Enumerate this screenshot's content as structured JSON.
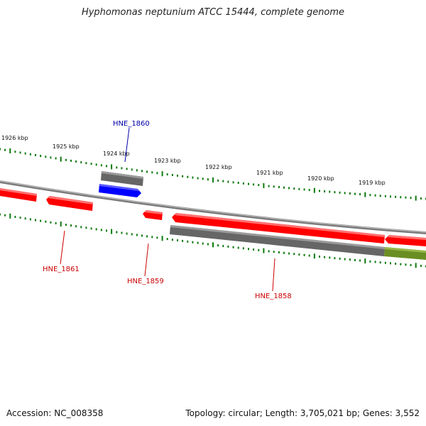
{
  "title": "Hyphomonas neptunium ATCC 15444, complete genome",
  "footer": {
    "accession": "Accession: NC_008358",
    "topology": "Topology: circular; Length: 3,705,021 bp; Genes: 3,552"
  },
  "colors": {
    "forward_gene": "#ff0000",
    "reverse_gene": "#ff0000",
    "highlight_gene": "#0000ff",
    "feature_gray": "#666666",
    "feature_green": "#6b8e23",
    "backbone": "#888888",
    "tick": "#0a7a0a",
    "label_red": "#cc0000",
    "label_blue": "#0000aa"
  },
  "ticks": {
    "labels": [
      "1926 kbp",
      "1925 kbp",
      "1924 kbp",
      "1923 kbp",
      "1922 kbp",
      "1921 kbp",
      "1920 kbp",
      "1919 kbp"
    ]
  },
  "genes": [
    {
      "id": "HNE_1860",
      "label": "HNE_1860",
      "color": "blue"
    },
    {
      "id": "HNE_1861",
      "label": "HNE_1861",
      "color": "red"
    },
    {
      "id": "HNE_1859",
      "label": "HNE_1859",
      "color": "red"
    },
    {
      "id": "HNE_1858",
      "label": "HNE_1858",
      "color": "red"
    }
  ]
}
